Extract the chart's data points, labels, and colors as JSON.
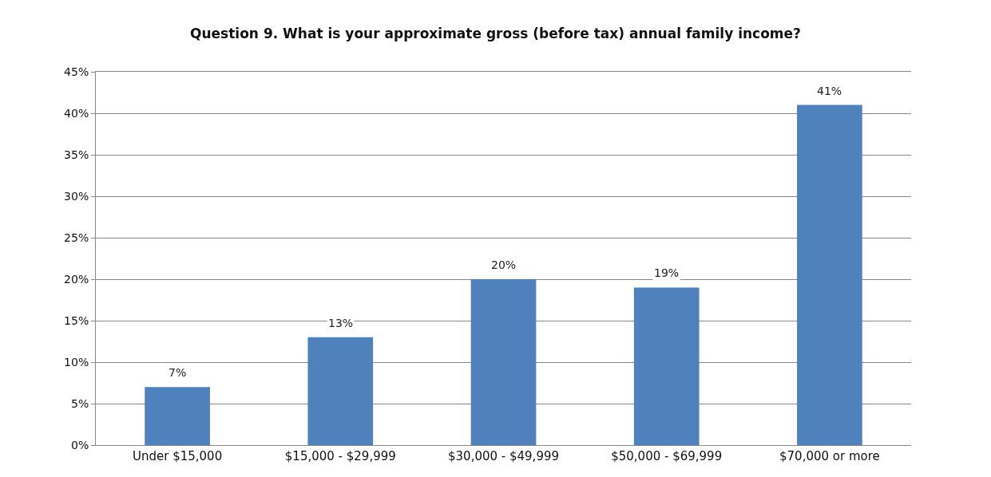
{
  "chart_data": {
    "type": "bar",
    "title": "Question 9. What is your approximate gross (before tax) annual family income?",
    "categories": [
      "Under $15,000",
      "$15,000 - $29,999",
      "$30,000 - $49,999",
      "$50,000 - $69,999",
      "$70,000 or more"
    ],
    "values": [
      7,
      13,
      20,
      19,
      41
    ],
    "color": "#4f81bd",
    "data_labels": true,
    "value_labels": [
      "7%",
      "13%",
      "20%",
      "19%",
      "41%"
    ],
    "ylim": [
      0,
      45
    ],
    "yticks": [
      {
        "value": 0,
        "label": "0%"
      },
      {
        "value": 5,
        "label": "5%"
      },
      {
        "value": 10,
        "label": "10%"
      },
      {
        "value": 15,
        "label": "15%"
      },
      {
        "value": 20,
        "label": "20%"
      },
      {
        "value": 25,
        "label": "25%"
      },
      {
        "value": 30,
        "label": "30%"
      },
      {
        "value": 35,
        "label": "35%"
      },
      {
        "value": 40,
        "label": "40%"
      },
      {
        "value": 45,
        "label": "45%"
      }
    ],
    "grid": "y"
  }
}
